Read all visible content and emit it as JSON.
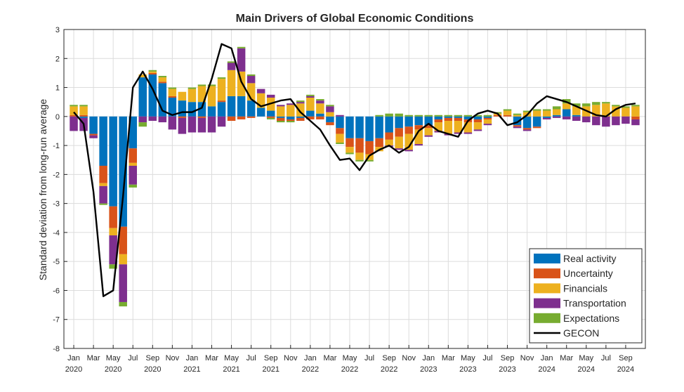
{
  "chart_data": {
    "type": "bar",
    "stacked": true,
    "title": "Main Drivers of Global Economic Conditions",
    "ylabel": "Standard deviation from long-run average",
    "xlabel": "",
    "ylim": [
      -8,
      3
    ],
    "yticks": [
      -8,
      -7,
      -6,
      -5,
      -4,
      -3,
      -2,
      -1,
      0,
      1,
      2,
      3
    ],
    "grid": true,
    "legend_position": "bottom-right",
    "x": [
      "2020-01",
      "2020-02",
      "2020-03",
      "2020-04",
      "2020-05",
      "2020-06",
      "2020-07",
      "2020-08",
      "2020-09",
      "2020-10",
      "2020-11",
      "2020-12",
      "2021-01",
      "2021-02",
      "2021-03",
      "2021-04",
      "2021-05",
      "2021-06",
      "2021-07",
      "2021-08",
      "2021-09",
      "2021-10",
      "2021-11",
      "2021-12",
      "2022-01",
      "2022-02",
      "2022-03",
      "2022-04",
      "2022-05",
      "2022-06",
      "2022-07",
      "2022-08",
      "2022-09",
      "2022-10",
      "2022-11",
      "2022-12",
      "2023-01",
      "2023-02",
      "2023-03",
      "2023-04",
      "2023-05",
      "2023-06",
      "2023-07",
      "2023-08",
      "2023-09",
      "2023-10",
      "2023-11",
      "2023-12",
      "2024-01",
      "2024-02",
      "2024-03",
      "2024-04",
      "2024-05",
      "2024-06",
      "2024-07",
      "2024-08",
      "2024-09",
      "2024-10"
    ],
    "xtick_labels": [
      {
        "month": "Jan",
        "year": "2020"
      },
      {
        "month": "Mar",
        "year": ""
      },
      {
        "month": "May",
        "year": "2020"
      },
      {
        "month": "Jul",
        "year": ""
      },
      {
        "month": "Sep",
        "year": "2020"
      },
      {
        "month": "Nov",
        "year": ""
      },
      {
        "month": "Jan",
        "year": "2021"
      },
      {
        "month": "Mar",
        "year": ""
      },
      {
        "month": "May",
        "year": "2021"
      },
      {
        "month": "Jul",
        "year": ""
      },
      {
        "month": "Sep",
        "year": "2021"
      },
      {
        "month": "Nov",
        "year": ""
      },
      {
        "month": "Jan",
        "year": "2022"
      },
      {
        "month": "Mar",
        "year": ""
      },
      {
        "month": "May",
        "year": "2022"
      },
      {
        "month": "Jul",
        "year": ""
      },
      {
        "month": "Sep",
        "year": "2022"
      },
      {
        "month": "Nov",
        "year": ""
      },
      {
        "month": "Jan",
        "year": "2023"
      },
      {
        "month": "Mar",
        "year": ""
      },
      {
        "month": "May",
        "year": "2023"
      },
      {
        "month": "Jul",
        "year": ""
      },
      {
        "month": "Sep",
        "year": "2023"
      },
      {
        "month": "Nov",
        "year": ""
      },
      {
        "month": "Jan",
        "year": "2024"
      },
      {
        "month": "Mar",
        "year": ""
      },
      {
        "month": "May",
        "year": "2024"
      },
      {
        "month": "Jul",
        "year": ""
      },
      {
        "month": "Sep",
        "year": "2024"
      }
    ],
    "series": [
      {
        "name": "Real activity",
        "color": "#0072BD",
        "values": [
          0,
          -0.05,
          -0.6,
          -1.7,
          -3.1,
          -3.8,
          -1.1,
          1.35,
          1.45,
          1.15,
          0.65,
          0.55,
          0.5,
          0.5,
          0.35,
          0.5,
          0.7,
          0.7,
          0.55,
          0.3,
          0.2,
          -0.05,
          -0.1,
          -0.05,
          0.2,
          0.1,
          -0.2,
          -0.4,
          -0.75,
          -0.75,
          -0.85,
          -0.75,
          -0.55,
          -0.4,
          -0.35,
          -0.3,
          -0.3,
          -0.1,
          -0.05,
          -0.05,
          -0.1,
          -0.1,
          -0.05,
          0,
          0,
          -0.3,
          -0.4,
          -0.35,
          -0.05,
          0.05,
          0.25,
          0.05,
          0,
          0,
          0,
          0,
          0,
          0
        ]
      },
      {
        "name": "Uncertainty",
        "color": "#D95319",
        "values": [
          0.05,
          0.05,
          -0.05,
          -0.6,
          -0.75,
          -0.95,
          -0.5,
          0,
          0.05,
          0.05,
          0.05,
          -0.05,
          0,
          -0.05,
          0,
          0.05,
          -0.15,
          -0.1,
          -0.05,
          0,
          -0.05,
          -0.1,
          -0.05,
          -0.1,
          -0.1,
          -0.1,
          -0.1,
          -0.2,
          -0.3,
          -0.5,
          -0.45,
          -0.3,
          -0.25,
          -0.3,
          -0.25,
          -0.15,
          -0.1,
          -0.1,
          -0.1,
          -0.1,
          -0.1,
          -0.1,
          -0.05,
          0.05,
          0.05,
          -0.05,
          -0.05,
          -0.05,
          0,
          0,
          0,
          0,
          0,
          0,
          0,
          0,
          0,
          -0.1
        ]
      },
      {
        "name": "Financials",
        "color": "#EDB120",
        "values": [
          0.3,
          0.3,
          0,
          -0.1,
          -0.25,
          -0.35,
          -0.1,
          0.1,
          0.05,
          0.15,
          0.25,
          0.3,
          0.45,
          0.55,
          0.7,
          0.75,
          0.9,
          0.85,
          0.6,
          0.5,
          0.45,
          0.35,
          0.4,
          0.45,
          0.45,
          0.35,
          0.15,
          -0.3,
          -0.2,
          -0.25,
          -0.2,
          -0.15,
          -0.2,
          -0.4,
          -0.55,
          -0.5,
          -0.25,
          -0.3,
          -0.45,
          -0.4,
          -0.35,
          -0.25,
          -0.15,
          0.05,
          0.15,
          0.05,
          0.15,
          0.2,
          0.2,
          0.2,
          0.2,
          0.3,
          0.35,
          0.4,
          0.45,
          0.35,
          0.3,
          0.35
        ]
      },
      {
        "name": "Transportation",
        "color": "#7E2F8E",
        "values": [
          -0.5,
          -0.45,
          -0.1,
          -0.6,
          -1.0,
          -1.3,
          -0.65,
          -0.2,
          -0.15,
          -0.2,
          -0.45,
          -0.55,
          -0.55,
          -0.5,
          -0.55,
          -0.35,
          0.25,
          0.8,
          0.25,
          0.15,
          0.1,
          0.05,
          0.05,
          0.05,
          0.05,
          0.1,
          0.2,
          0.05,
          0,
          0,
          0,
          0,
          -0.05,
          -0.05,
          -0.05,
          -0.05,
          -0.05,
          -0.05,
          -0.05,
          -0.05,
          -0.05,
          -0.05,
          -0.05,
          0,
          0,
          -0.05,
          -0.05,
          0,
          -0.05,
          -0.05,
          -0.1,
          -0.15,
          -0.2,
          -0.3,
          -0.35,
          -0.3,
          -0.25,
          -0.2
        ]
      },
      {
        "name": "Expectations",
        "color": "#77AC30",
        "values": [
          0.05,
          0.05,
          0,
          -0.05,
          -0.15,
          -0.15,
          -0.1,
          -0.15,
          0.05,
          0.05,
          0.05,
          0,
          0.05,
          0.05,
          0.05,
          0.05,
          0.05,
          0.05,
          0.05,
          0,
          -0.05,
          -0.05,
          -0.05,
          0.05,
          0.05,
          0.05,
          0.05,
          -0.05,
          -0.05,
          -0.05,
          -0.05,
          0.05,
          0.1,
          0.1,
          0.05,
          0.05,
          0.05,
          0.05,
          0.05,
          0.05,
          0.05,
          0.05,
          0.05,
          0.05,
          0.05,
          0.05,
          0.05,
          0.05,
          0.05,
          0.1,
          0.15,
          0.1,
          0.1,
          0.1,
          0.05,
          0.05,
          0.05,
          0.05
        ]
      }
    ],
    "line": {
      "name": "GECON",
      "color": "#000000",
      "values": [
        0.15,
        -0.25,
        -2.6,
        -6.2,
        -6.0,
        -2.75,
        1.0,
        1.55,
        0.95,
        0.2,
        0.05,
        0.15,
        0.15,
        0.3,
        1.3,
        2.5,
        2.35,
        1.2,
        0.6,
        0.35,
        0.45,
        0.55,
        0.6,
        0.15,
        -0.15,
        -0.45,
        -1.0,
        -1.5,
        -1.45,
        -1.85,
        -1.35,
        -1.15,
        -1.0,
        -1.25,
        -1.05,
        -0.5,
        -0.25,
        -0.5,
        -0.6,
        -0.7,
        -0.15,
        0.1,
        0.2,
        0.1,
        -0.3,
        -0.2,
        0.05,
        0.45,
        0.7,
        0.6,
        0.5,
        0.35,
        0.2,
        0.05,
        0.0,
        0.25,
        0.4,
        0.45
      ]
    }
  }
}
